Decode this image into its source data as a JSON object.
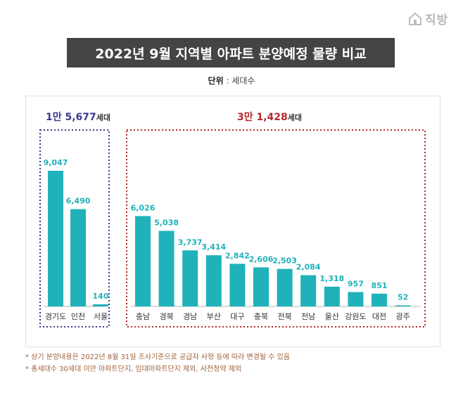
{
  "logo": {
    "text": "직방",
    "icon": "house-icon"
  },
  "title": "2022년 9월 지역별 아파트 분양예정 물량 비교",
  "unit": {
    "label": "단위",
    "separator": " : ",
    "value": "세대수"
  },
  "chart_data": {
    "type": "bar",
    "bar_color": "#1fb2ba",
    "groups": [
      {
        "total_value": "1만 5,677",
        "total_suffix": "세대",
        "color": "#3a3a8f",
        "categories": [
          "경기도",
          "인천",
          "서울"
        ],
        "values": [
          9047,
          6490,
          140
        ],
        "labels": [
          "9,047",
          "6,490",
          "140"
        ]
      },
      {
        "total_value": "3만 1,428",
        "total_suffix": "세대",
        "color": "#b52a2e",
        "categories": [
          "충남",
          "경북",
          "경남",
          "부산",
          "대구",
          "충북",
          "전북",
          "전남",
          "울산",
          "강원도",
          "대전",
          "광주"
        ],
        "values": [
          6026,
          5038,
          3737,
          3414,
          2842,
          2606,
          2503,
          2084,
          1318,
          957,
          851,
          52
        ],
        "labels": [
          "6,026",
          "5,038",
          "3,737",
          "3,414",
          "2,842",
          "2,606",
          "2,503",
          "2,084",
          "1,318",
          "957",
          "851",
          "52"
        ]
      }
    ]
  },
  "notes": [
    "* 상기 분양내용은 2022년 8월 31일 조사기준으로 공급자 사정 등에 따라 변경될 수 있음",
    "* 총세대수 30세대 미만 아파트단지, 임대아파트단지 제외, 사전청약 제외"
  ]
}
